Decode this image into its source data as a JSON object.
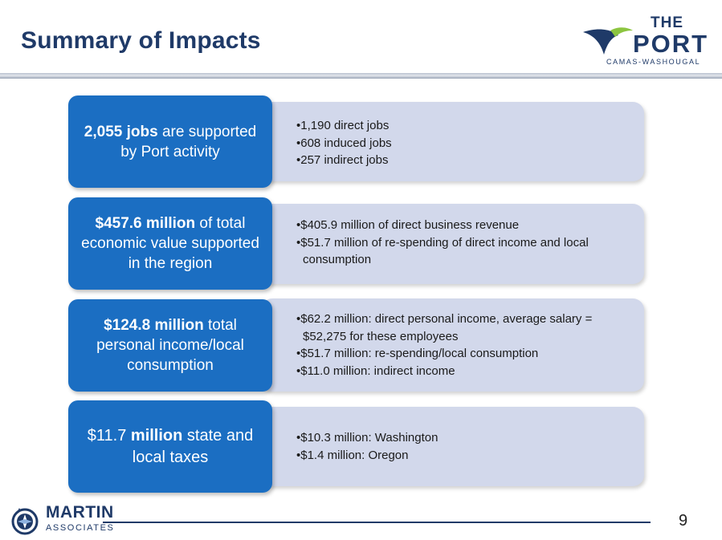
{
  "title": "Summary of Impacts",
  "logo": {
    "the": "THE",
    "port": "PORT",
    "subtitle": "CAMAS-WASHOUGAL",
    "colors": {
      "navy": "#1f3a68",
      "green": "#8cc540"
    }
  },
  "rows": [
    {
      "highlight": "2,055 jobs",
      "rest": " are supported by Port activity",
      "bullets": [
        "•1,190 direct jobs",
        "•608 induced jobs",
        "•257 indirect jobs"
      ]
    },
    {
      "highlight": "$457.6 million",
      "rest": " of total economic value supported in the region",
      "bullets": [
        "•$405.9 million of direct business revenue",
        "•$51.7 million of re-spending of direct income and local consumption"
      ]
    },
    {
      "highlight": "$124.8 million",
      "rest": " total personal income/local consumption",
      "bullets": [
        "•$62.2 million: direct personal income, average salary = $52,275 for these employees",
        "•$51.7 million: re-spending/local consumption",
        "•$11.0 million: indirect income"
      ]
    },
    {
      "prefix": "$11.7 ",
      "highlight": "million",
      "rest": " state and local taxes",
      "bullets": [
        "•$10.3 million: Washington",
        "•$1.4 million: Oregon"
      ]
    }
  ],
  "footer": {
    "company_name": "MARTIN",
    "company_sub": "ASSOCIATES",
    "page_number": "9"
  },
  "colors": {
    "box_blue": "#1b6ec2",
    "detail_bg": "#d2d8eb",
    "title_navy": "#1f3a68"
  }
}
